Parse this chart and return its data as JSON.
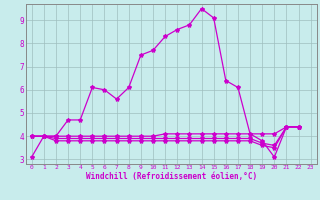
{
  "xlabel": "Windchill (Refroidissement éolien,°C)",
  "bg_color": "#c8ecec",
  "grid_color": "#9fbfbf",
  "line_color": "#cc00cc",
  "xlim": [
    -0.5,
    23.5
  ],
  "ylim": [
    2.8,
    9.7
  ],
  "yticks": [
    3,
    4,
    5,
    6,
    7,
    8,
    9
  ],
  "xticks": [
    0,
    1,
    2,
    3,
    4,
    5,
    6,
    7,
    8,
    9,
    10,
    11,
    12,
    13,
    14,
    15,
    16,
    17,
    18,
    19,
    20,
    21,
    22,
    23
  ],
  "x": [
    0,
    1,
    2,
    3,
    4,
    5,
    6,
    7,
    8,
    9,
    10,
    11,
    12,
    13,
    14,
    15,
    16,
    17,
    18,
    19,
    20,
    21,
    22
  ],
  "series": [
    [
      3.1,
      4.0,
      4.0,
      4.7,
      4.7,
      6.1,
      6.0,
      5.6,
      6.1,
      7.5,
      7.7,
      8.3,
      8.6,
      8.8,
      9.5,
      9.1,
      6.4,
      6.1,
      4.1,
      3.8,
      3.1,
      4.4,
      4.4
    ],
    [
      4.0,
      4.0,
      4.0,
      4.0,
      4.0,
      4.0,
      4.0,
      4.0,
      4.0,
      4.0,
      4.0,
      4.1,
      4.1,
      4.1,
      4.1,
      4.1,
      4.1,
      4.1,
      4.1,
      4.1,
      4.1,
      4.4,
      4.4
    ],
    [
      4.0,
      4.0,
      3.9,
      3.9,
      3.9,
      3.9,
      3.9,
      3.9,
      3.9,
      3.9,
      3.9,
      3.9,
      3.9,
      3.9,
      3.9,
      3.9,
      3.9,
      3.9,
      3.9,
      3.7,
      3.6,
      4.4,
      4.4
    ],
    [
      4.0,
      4.0,
      3.8,
      3.8,
      3.8,
      3.8,
      3.8,
      3.8,
      3.8,
      3.8,
      3.8,
      3.8,
      3.8,
      3.8,
      3.8,
      3.8,
      3.8,
      3.8,
      3.8,
      3.6,
      3.5,
      4.4,
      4.4
    ]
  ],
  "xlabel_fontsize": 5.5,
  "tick_fontsize_x": 4.5,
  "tick_fontsize_y": 5.5,
  "marker_size": 3.0,
  "line_width": 0.9
}
